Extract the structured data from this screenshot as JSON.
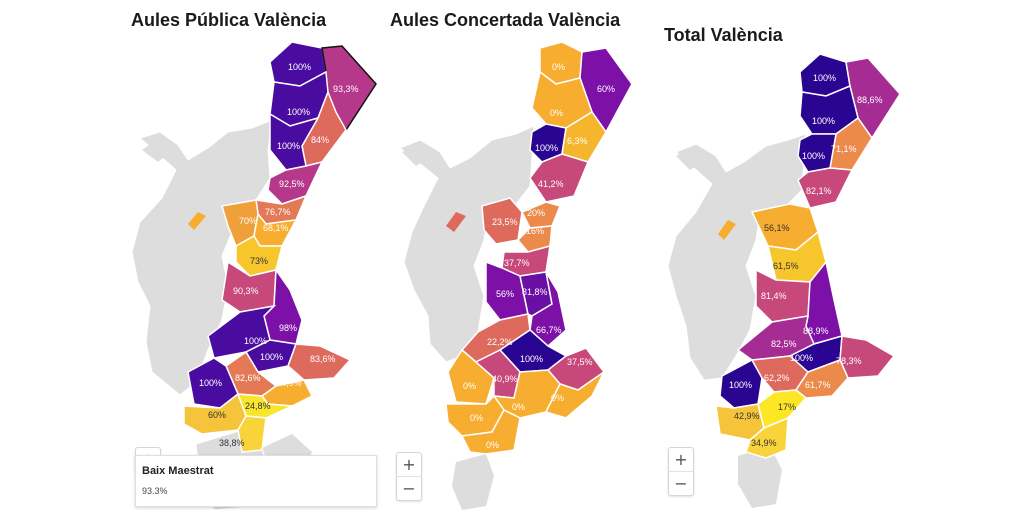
{
  "colors": {
    "no_data": "#dddddd",
    "scale": [
      "#fde725",
      "#f8d43a",
      "#f7ad2f",
      "#ec8a4b",
      "#de6a5e",
      "#c7487a",
      "#a52c93",
      "#7d11a7",
      "#4a0ca0",
      "#2a0592"
    ]
  },
  "maps": [
    {
      "title": "Aules Pública València",
      "regions": [
        {
          "value": "100%",
          "color": "#4a0ca0"
        },
        {
          "value": "93,3%",
          "color": "#b5388a"
        },
        {
          "value": "100%",
          "color": "#4a0ca0"
        },
        {
          "value": "84%",
          "color": "#de6a5e"
        },
        {
          "value": "100%",
          "color": "#4a0ca0"
        },
        {
          "value": "92,5%",
          "color": "#b5388a"
        },
        {
          "value": "76,7%",
          "color": "#e47a55"
        },
        {
          "value": "70%",
          "color": "#f0a03a"
        },
        {
          "value": "68,1%",
          "color": "#f7ad2f"
        },
        {
          "value": "73%",
          "color": "#f7c52c"
        },
        {
          "value": "90,3%",
          "color": "#c7487a"
        },
        {
          "value": "98%",
          "color": "#7d11a7"
        },
        {
          "value": "100%",
          "color": "#4a0ca0"
        },
        {
          "value": "100%",
          "color": "#4a0ca0"
        },
        {
          "value": "83,6%",
          "color": "#de6a5e"
        },
        {
          "value": "82,6%",
          "color": "#e47a55"
        },
        {
          "value": "100%",
          "color": "#4a0ca0"
        },
        {
          "value": "64,9%",
          "color": "#f7ad2f"
        },
        {
          "value": "60%",
          "color": "#f5c43a"
        },
        {
          "value": "24,8%",
          "color": "#f7e62c"
        },
        {
          "value": "38,8%",
          "color": "#f8d43a"
        }
      ],
      "zoom": {
        "in": "+",
        "out": "−"
      },
      "tooltip": {
        "name": "Baix Maestrat",
        "value": "93.3%"
      }
    },
    {
      "title": "Aules Concertada València",
      "regions": [
        {
          "value": "0%",
          "color": "#f7ad2f"
        },
        {
          "value": "60%",
          "color": "#7d11a7"
        },
        {
          "value": "0%",
          "color": "#f7ad2f"
        },
        {
          "value": "100%",
          "color": "#2a0592"
        },
        {
          "value": "6,3%",
          "color": "#f5b52c"
        },
        {
          "value": "41,2%",
          "color": "#c7487a"
        },
        {
          "value": "23,5%",
          "color": "#de6a5e"
        },
        {
          "value": "20%",
          "color": "#ec8a4b"
        },
        {
          "value": "16%",
          "color": "#ec8a4b"
        },
        {
          "value": "37,7%",
          "color": "#c7487a"
        },
        {
          "value": "56%",
          "color": "#7d11a7"
        },
        {
          "value": "81,8%",
          "color": "#6a0fa4"
        },
        {
          "value": "66,7%",
          "color": "#7d11a7"
        },
        {
          "value": "22,2%",
          "color": "#de6a5e"
        },
        {
          "value": "100%",
          "color": "#2a0592"
        },
        {
          "value": "37,5%",
          "color": "#c7487a"
        },
        {
          "value": "0%",
          "color": "#f7ad2f"
        },
        {
          "value": "40,9%",
          "color": "#c7487a"
        },
        {
          "value": "0%",
          "color": "#f7ad2f"
        },
        {
          "value": "0%",
          "color": "#f7ad2f"
        },
        {
          "value": "0%",
          "color": "#f7ad2f"
        },
        {
          "value": "0%",
          "color": "#f7ad2f"
        }
      ],
      "zoom": {
        "in": "+",
        "out": "−"
      }
    },
    {
      "title": "Total València",
      "regions": [
        {
          "value": "100%",
          "color": "#2a0592"
        },
        {
          "value": "88,6%",
          "color": "#a52c93"
        },
        {
          "value": "100%",
          "color": "#2a0592"
        },
        {
          "value": "71,1%",
          "color": "#ec8a4b"
        },
        {
          "value": "100%",
          "color": "#2a0592"
        },
        {
          "value": "82,1%",
          "color": "#c7487a"
        },
        {
          "value": "56,1%",
          "color": "#f7ad2f"
        },
        {
          "value": "61,5%",
          "color": "#f7c52c"
        },
        {
          "value": "81,4%",
          "color": "#c7487a"
        },
        {
          "value": "88,9%",
          "color": "#7d11a7"
        },
        {
          "value": "82,5%",
          "color": "#a52c93"
        },
        {
          "value": "100%",
          "color": "#2a0592"
        },
        {
          "value": "78,3%",
          "color": "#c7487a"
        },
        {
          "value": "100%",
          "color": "#2a0592"
        },
        {
          "value": "62,2%",
          "color": "#de6a5e"
        },
        {
          "value": "61,7%",
          "color": "#ec8a4b"
        },
        {
          "value": "42,9%",
          "color": "#f5c43a"
        },
        {
          "value": "17%",
          "color": "#fde725"
        },
        {
          "value": "34,9%",
          "color": "#f8d43a"
        }
      ],
      "zoom": {
        "in": "+",
        "out": "−"
      }
    }
  ]
}
